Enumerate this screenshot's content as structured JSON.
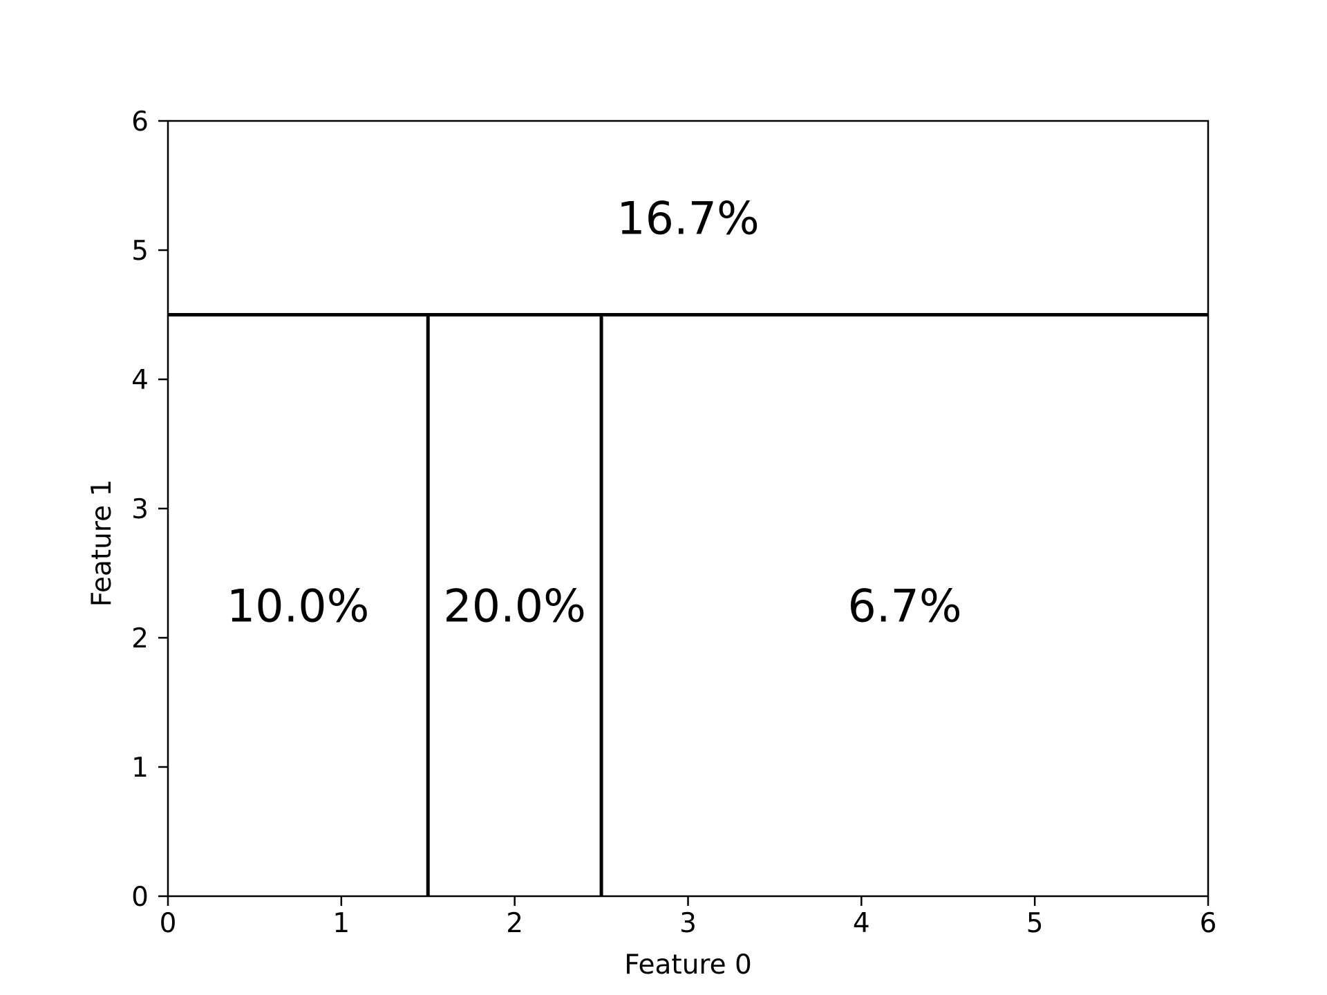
{
  "chart_data": {
    "type": "other",
    "xlabel": "Feature 0",
    "ylabel": "Feature 1",
    "xlim": [
      0,
      6
    ],
    "ylim": [
      0,
      6
    ],
    "x_ticks": [
      0,
      1,
      2,
      3,
      4,
      5,
      6
    ],
    "y_ticks": [
      0,
      1,
      2,
      3,
      4,
      5,
      6
    ],
    "grid": false,
    "split_lines": [
      {
        "orientation": "horizontal",
        "y": 4.5,
        "x_range": [
          0,
          6
        ]
      },
      {
        "orientation": "vertical",
        "x": 1.5,
        "y_range": [
          0,
          4.5
        ]
      },
      {
        "orientation": "vertical",
        "x": 2.5,
        "y_range": [
          0,
          4.5
        ]
      }
    ],
    "regions": [
      {
        "label": "16.7%",
        "x_range": [
          0,
          6
        ],
        "y_range": [
          4.5,
          6
        ]
      },
      {
        "label": "10.0%",
        "x_range": [
          0,
          1.5
        ],
        "y_range": [
          0,
          4.5
        ]
      },
      {
        "label": "20.0%",
        "x_range": [
          1.5,
          2.5
        ],
        "y_range": [
          0,
          4.5
        ]
      },
      {
        "label": "6.7%",
        "x_range": [
          2.5,
          6
        ],
        "y_range": [
          0,
          4.5
        ]
      }
    ],
    "line_color": "#000000"
  }
}
